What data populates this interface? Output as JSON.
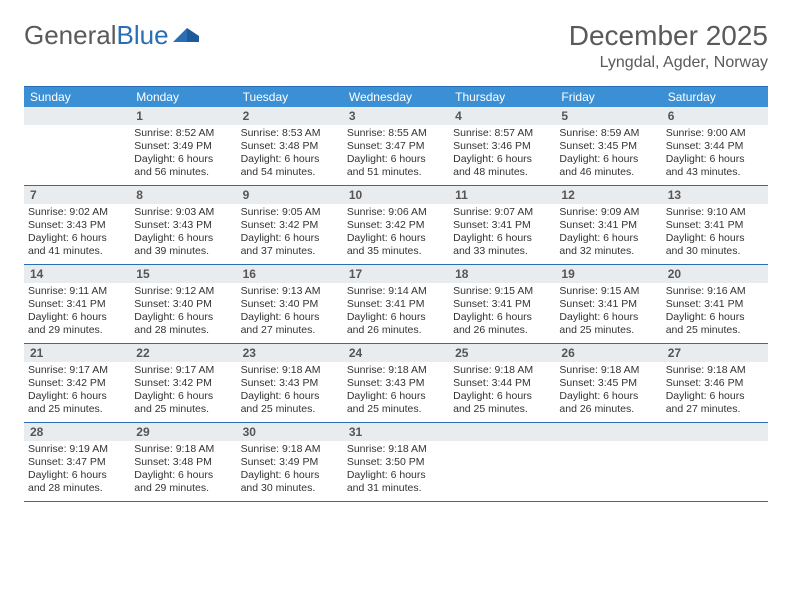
{
  "logo": {
    "word1": "General",
    "word2": "Blue"
  },
  "title": "December 2025",
  "location": "Lyngdal, Agder, Norway",
  "colors": {
    "header_bg": "#3b8fd4",
    "header_text": "#ffffff",
    "border": "#2a6fb5",
    "daynum_bg": "#e9ecef",
    "text": "#333333"
  },
  "day_names": [
    "Sunday",
    "Monday",
    "Tuesday",
    "Wednesday",
    "Thursday",
    "Friday",
    "Saturday"
  ],
  "lead_blanks": 1,
  "days": [
    {
      "n": 1,
      "sr": "8:52 AM",
      "ss": "3:49 PM",
      "dl": "6 hours and 56 minutes."
    },
    {
      "n": 2,
      "sr": "8:53 AM",
      "ss": "3:48 PM",
      "dl": "6 hours and 54 minutes."
    },
    {
      "n": 3,
      "sr": "8:55 AM",
      "ss": "3:47 PM",
      "dl": "6 hours and 51 minutes."
    },
    {
      "n": 4,
      "sr": "8:57 AM",
      "ss": "3:46 PM",
      "dl": "6 hours and 48 minutes."
    },
    {
      "n": 5,
      "sr": "8:59 AM",
      "ss": "3:45 PM",
      "dl": "6 hours and 46 minutes."
    },
    {
      "n": 6,
      "sr": "9:00 AM",
      "ss": "3:44 PM",
      "dl": "6 hours and 43 minutes."
    },
    {
      "n": 7,
      "sr": "9:02 AM",
      "ss": "3:43 PM",
      "dl": "6 hours and 41 minutes."
    },
    {
      "n": 8,
      "sr": "9:03 AM",
      "ss": "3:43 PM",
      "dl": "6 hours and 39 minutes."
    },
    {
      "n": 9,
      "sr": "9:05 AM",
      "ss": "3:42 PM",
      "dl": "6 hours and 37 minutes."
    },
    {
      "n": 10,
      "sr": "9:06 AM",
      "ss": "3:42 PM",
      "dl": "6 hours and 35 minutes."
    },
    {
      "n": 11,
      "sr": "9:07 AM",
      "ss": "3:41 PM",
      "dl": "6 hours and 33 minutes."
    },
    {
      "n": 12,
      "sr": "9:09 AM",
      "ss": "3:41 PM",
      "dl": "6 hours and 32 minutes."
    },
    {
      "n": 13,
      "sr": "9:10 AM",
      "ss": "3:41 PM",
      "dl": "6 hours and 30 minutes."
    },
    {
      "n": 14,
      "sr": "9:11 AM",
      "ss": "3:41 PM",
      "dl": "6 hours and 29 minutes."
    },
    {
      "n": 15,
      "sr": "9:12 AM",
      "ss": "3:40 PM",
      "dl": "6 hours and 28 minutes."
    },
    {
      "n": 16,
      "sr": "9:13 AM",
      "ss": "3:40 PM",
      "dl": "6 hours and 27 minutes."
    },
    {
      "n": 17,
      "sr": "9:14 AM",
      "ss": "3:41 PM",
      "dl": "6 hours and 26 minutes."
    },
    {
      "n": 18,
      "sr": "9:15 AM",
      "ss": "3:41 PM",
      "dl": "6 hours and 26 minutes."
    },
    {
      "n": 19,
      "sr": "9:15 AM",
      "ss": "3:41 PM",
      "dl": "6 hours and 25 minutes."
    },
    {
      "n": 20,
      "sr": "9:16 AM",
      "ss": "3:41 PM",
      "dl": "6 hours and 25 minutes."
    },
    {
      "n": 21,
      "sr": "9:17 AM",
      "ss": "3:42 PM",
      "dl": "6 hours and 25 minutes."
    },
    {
      "n": 22,
      "sr": "9:17 AM",
      "ss": "3:42 PM",
      "dl": "6 hours and 25 minutes."
    },
    {
      "n": 23,
      "sr": "9:18 AM",
      "ss": "3:43 PM",
      "dl": "6 hours and 25 minutes."
    },
    {
      "n": 24,
      "sr": "9:18 AM",
      "ss": "3:43 PM",
      "dl": "6 hours and 25 minutes."
    },
    {
      "n": 25,
      "sr": "9:18 AM",
      "ss": "3:44 PM",
      "dl": "6 hours and 25 minutes."
    },
    {
      "n": 26,
      "sr": "9:18 AM",
      "ss": "3:45 PM",
      "dl": "6 hours and 26 minutes."
    },
    {
      "n": 27,
      "sr": "9:18 AM",
      "ss": "3:46 PM",
      "dl": "6 hours and 27 minutes."
    },
    {
      "n": 28,
      "sr": "9:19 AM",
      "ss": "3:47 PM",
      "dl": "6 hours and 28 minutes."
    },
    {
      "n": 29,
      "sr": "9:18 AM",
      "ss": "3:48 PM",
      "dl": "6 hours and 29 minutes."
    },
    {
      "n": 30,
      "sr": "9:18 AM",
      "ss": "3:49 PM",
      "dl": "6 hours and 30 minutes."
    },
    {
      "n": 31,
      "sr": "9:18 AM",
      "ss": "3:50 PM",
      "dl": "6 hours and 31 minutes."
    }
  ],
  "labels": {
    "sunrise": "Sunrise:",
    "sunset": "Sunset:",
    "daylight": "Daylight:"
  }
}
